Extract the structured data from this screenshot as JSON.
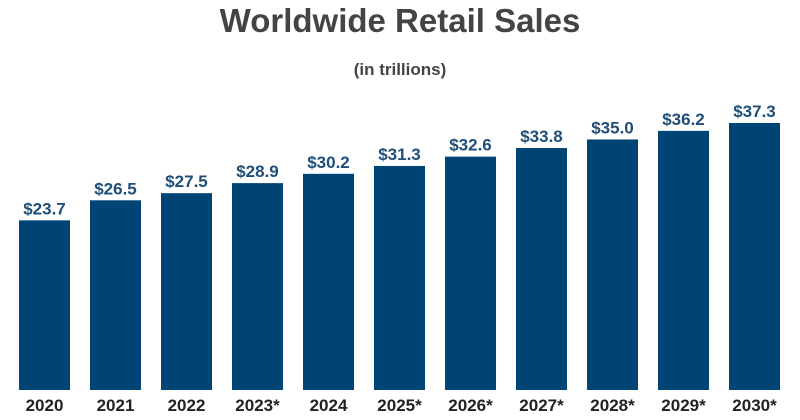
{
  "chart_data": {
    "type": "bar",
    "title": "Worldwide Retail Sales",
    "subtitle": "(in trillions)",
    "xlabel": "",
    "ylabel": "",
    "categories": [
      "2020",
      "2021",
      "2022",
      "2023*",
      "2024",
      "2025*",
      "2026*",
      "2027*",
      "2028*",
      "2029*",
      "2030*"
    ],
    "values": [
      23.7,
      26.5,
      27.5,
      28.9,
      30.2,
      31.3,
      32.6,
      33.8,
      35.0,
      36.2,
      37.3
    ],
    "data_labels": [
      "$23.7",
      "$26.5",
      "$27.5",
      "$28.9",
      "$30.2",
      "$31.3",
      "$32.6",
      "$33.8",
      "$35.0",
      "$36.2",
      "$37.3"
    ],
    "ylim": [
      0,
      37.3
    ],
    "grid": false,
    "legend": "none",
    "colors": {
      "bar": "#004375",
      "data_label": "#1f4e79",
      "tick_label": "#222222",
      "title": "#444444"
    }
  }
}
